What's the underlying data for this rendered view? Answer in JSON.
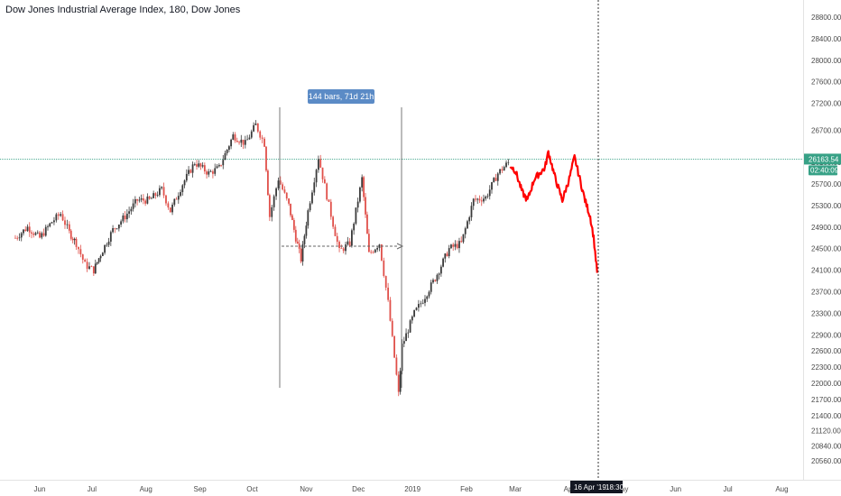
{
  "header": {
    "title": "Dow Jones Industrial Average Index, 180, Dow Jones"
  },
  "price_axis": {
    "last_price": "26163.54",
    "countdown": "02:40:09",
    "last_price_color": "#37a186"
  },
  "crosshair": {
    "date_label": "16 Apr '19",
    "time_label": "18:30"
  },
  "measure": {
    "label": "144 bars, 71d 21h"
  },
  "colors": {
    "up": "#3a3a3a",
    "down": "#e0504a",
    "projection": "#ff0000",
    "accent": "#5b8bc6"
  },
  "chart_data": {
    "type": "line",
    "title": "Dow Jones Industrial Average Index, 180, Dow Jones",
    "xlabel": "",
    "ylabel": "",
    "x_ticks": [
      "Jun",
      "Jul",
      "Aug",
      "Sep",
      "Oct",
      "Nov",
      "Dec",
      "2019",
      "Feb",
      "Mar",
      "Apr",
      "May",
      "Jun",
      "Jul",
      "Aug"
    ],
    "y_ticks": [
      20560,
      20840,
      21120,
      21400,
      21700,
      22000,
      22300,
      22600,
      22900,
      23300,
      23700,
      24100,
      24500,
      24900,
      25300,
      25700,
      26100,
      26700,
      27200,
      27600,
      28000,
      28400,
      28800
    ],
    "ylim": [
      20400,
      28900
    ],
    "last_price": 26163.54,
    "series": [
      {
        "values": [
          [
            "2018-05-18",
            24700
          ],
          [
            "2018-05-25",
            24900
          ],
          [
            "2018-06-01",
            24700
          ],
          [
            "2018-06-08",
            25000
          ],
          [
            "2018-06-13",
            25150
          ],
          [
            "2018-06-18",
            24800
          ],
          [
            "2018-06-22",
            24600
          ],
          [
            "2018-06-27",
            24200
          ],
          [
            "2018-07-02",
            24100
          ],
          [
            "2018-07-06",
            24400
          ],
          [
            "2018-07-13",
            24850
          ],
          [
            "2018-07-20",
            25100
          ],
          [
            "2018-07-27",
            25400
          ],
          [
            "2018-08-03",
            25400
          ],
          [
            "2018-08-10",
            25600
          ],
          [
            "2018-08-15",
            25200
          ],
          [
            "2018-08-22",
            25700
          ],
          [
            "2018-08-29",
            26100
          ],
          [
            "2018-09-06",
            25900
          ],
          [
            "2018-09-12",
            26000
          ],
          [
            "2018-09-20",
            26600
          ],
          [
            "2018-09-27",
            26450
          ],
          [
            "2018-10-03",
            26800
          ],
          [
            "2018-10-08",
            26450
          ],
          [
            "2018-10-11",
            25100
          ],
          [
            "2018-10-16",
            25800
          ],
          [
            "2018-10-22",
            25300
          ],
          [
            "2018-10-26",
            24700
          ],
          [
            "2018-10-29",
            24300
          ],
          [
            "2018-11-02",
            25200
          ],
          [
            "2018-11-08",
            26200
          ],
          [
            "2018-11-14",
            25300
          ],
          [
            "2018-11-20",
            24450
          ],
          [
            "2018-11-26",
            24600
          ],
          [
            "2018-12-03",
            25800
          ],
          [
            "2018-12-07",
            24400
          ],
          [
            "2018-12-13",
            24600
          ],
          [
            "2018-12-18",
            23500
          ],
          [
            "2018-12-24",
            21800
          ],
          [
            "2018-12-26",
            22700
          ],
          [
            "2019-01-02",
            23300
          ],
          [
            "2019-01-07",
            23550
          ],
          [
            "2019-01-14",
            23950
          ],
          [
            "2019-01-22",
            24500
          ],
          [
            "2019-01-29",
            24600
          ],
          [
            "2019-02-05",
            25400
          ],
          [
            "2019-02-12",
            25450
          ],
          [
            "2019-02-19",
            25900
          ],
          [
            "2019-02-25",
            26100
          ]
        ]
      },
      {
        "values": [
          [
            "2019-02-26",
            26050
          ],
          [
            "2019-03-01",
            25950
          ],
          [
            "2019-03-05",
            25550
          ],
          [
            "2019-03-08",
            25400
          ],
          [
            "2019-03-12",
            25800
          ],
          [
            "2019-03-15",
            25900
          ],
          [
            "2019-03-18",
            26000
          ],
          [
            "2019-03-20",
            26300
          ],
          [
            "2019-03-24",
            25800
          ],
          [
            "2019-03-28",
            25400
          ],
          [
            "2019-04-01",
            25800
          ],
          [
            "2019-04-04",
            26200
          ],
          [
            "2019-04-07",
            25800
          ],
          [
            "2019-04-10",
            25400
          ],
          [
            "2019-04-13",
            25100
          ],
          [
            "2019-04-15",
            24700
          ],
          [
            "2019-04-17",
            24050
          ]
        ]
      }
    ]
  }
}
